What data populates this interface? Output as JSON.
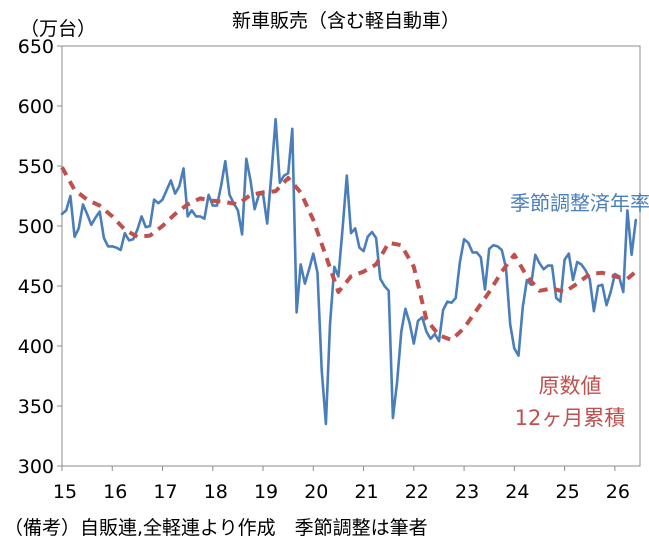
{
  "chart_data": {
    "type": "line",
    "title": "新車販売（含む軽自動車）",
    "unit_label": "（万台）",
    "note": "（備考）自販連,全軽連より作成　季節調整は筆者",
    "x_ticks": [
      "15",
      "16",
      "17",
      "18",
      "19",
      "20",
      "21",
      "22",
      "23",
      "24",
      "25",
      "26"
    ],
    "y_ticks": [
      "300",
      "350",
      "400",
      "450",
      "500",
      "550",
      "600",
      "650"
    ],
    "ylim": [
      300,
      650
    ],
    "xlim": [
      2015,
      2026.5
    ],
    "grid": false,
    "series": [
      {
        "name": "季節調整済年率換算",
        "color": "#4a7ebb",
        "style": "solid",
        "x": [
          2015.0,
          2015.083,
          2015.167,
          2015.25,
          2015.333,
          2015.417,
          2015.5,
          2015.583,
          2015.667,
          2015.75,
          2015.833,
          2015.917,
          2016.0,
          2016.083,
          2016.167,
          2016.25,
          2016.333,
          2016.417,
          2016.5,
          2016.583,
          2016.667,
          2016.75,
          2016.833,
          2016.917,
          2017.0,
          2017.083,
          2017.167,
          2017.25,
          2017.333,
          2017.417,
          2017.5,
          2017.583,
          2017.667,
          2017.75,
          2017.833,
          2017.917,
          2018.0,
          2018.083,
          2018.167,
          2018.25,
          2018.333,
          2018.417,
          2018.5,
          2018.583,
          2018.667,
          2018.75,
          2018.833,
          2018.917,
          2019.0,
          2019.083,
          2019.167,
          2019.25,
          2019.333,
          2019.417,
          2019.5,
          2019.583,
          2019.667,
          2019.75,
          2019.833,
          2019.917,
          2020.0,
          2020.083,
          2020.167,
          2020.25,
          2020.333,
          2020.417,
          2020.5,
          2020.583,
          2020.667,
          2020.75,
          2020.833,
          2020.917,
          2021.0,
          2021.083,
          2021.167,
          2021.25,
          2021.333,
          2021.417,
          2021.5,
          2021.583,
          2021.667,
          2021.75,
          2021.833,
          2021.917,
          2022.0,
          2022.083,
          2022.167,
          2022.25,
          2022.333,
          2022.417,
          2022.5,
          2022.583,
          2022.667,
          2022.75,
          2022.833,
          2022.917,
          2023.0,
          2023.083,
          2023.167,
          2023.25,
          2023.333,
          2023.417,
          2023.5,
          2023.583,
          2023.667,
          2023.75,
          2023.833,
          2023.917,
          2024.0,
          2024.083,
          2024.167,
          2024.25,
          2024.333,
          2024.417,
          2024.5,
          2024.583,
          2024.667,
          2024.75,
          2024.833,
          2024.917,
          2025.0,
          2025.083,
          2025.167,
          2025.25,
          2025.333,
          2025.417,
          2025.5,
          2025.583,
          2025.667,
          2025.75,
          2025.833,
          2025.917,
          2026.0,
          2026.083,
          2026.167,
          2026.25,
          2026.333,
          2026.417
        ],
        "values": [
          510,
          513,
          525,
          491,
          498,
          518,
          510,
          501,
          507,
          512,
          490,
          483,
          483,
          482,
          480,
          494,
          488,
          489,
          497,
          508,
          499,
          500,
          522,
          519,
          522,
          530,
          538,
          527,
          533,
          548,
          508,
          513,
          508,
          508,
          506,
          526,
          517,
          517,
          534,
          554,
          526,
          519,
          513,
          493,
          556,
          538,
          514,
          526,
          527,
          502,
          543,
          589,
          536,
          542,
          544,
          581,
          428,
          468,
          452,
          464,
          477,
          461,
          380,
          335,
          418,
          466,
          458,
          498,
          542,
          494,
          498,
          482,
          479,
          491,
          495,
          490,
          456,
          450,
          446,
          340,
          370,
          412,
          431,
          419,
          402,
          421,
          424,
          412,
          406,
          410,
          404,
          430,
          437,
          436,
          440,
          470,
          489,
          486,
          478,
          478,
          474,
          447,
          481,
          484,
          483,
          480,
          465,
          418,
          398,
          392,
          432,
          455,
          451,
          476,
          469,
          464,
          467,
          467,
          440,
          437,
          472,
          477,
          455,
          470,
          468,
          463,
          456,
          429,
          450,
          451,
          434,
          445,
          460,
          458,
          445,
          513,
          476,
          505
        ]
      },
      {
        "name": "原数値 12ヶ月累積",
        "label_lines": [
          "原数値",
          "12ヶ月累積"
        ],
        "color": "#c0504d",
        "style": "dashed",
        "x": [
          2015.0,
          2015.25,
          2015.5,
          2015.75,
          2016.0,
          2016.25,
          2016.5,
          2016.75,
          2017.0,
          2017.25,
          2017.5,
          2017.75,
          2018.0,
          2018.25,
          2018.5,
          2018.75,
          2019.0,
          2019.25,
          2019.5,
          2019.75,
          2020.0,
          2020.25,
          2020.5,
          2020.75,
          2021.0,
          2021.25,
          2021.5,
          2021.75,
          2022.0,
          2022.25,
          2022.5,
          2022.75,
          2023.0,
          2023.25,
          2023.5,
          2023.75,
          2024.0,
          2024.25,
          2024.5,
          2024.75,
          2025.0,
          2025.25,
          2025.5,
          2025.75,
          2026.0,
          2026.25,
          2026.417
        ],
        "values": [
          549,
          530,
          522,
          517,
          508,
          497,
          491,
          492,
          500,
          510,
          518,
          523,
          521,
          520,
          518,
          526,
          528,
          529,
          540,
          528,
          505,
          475,
          445,
          458,
          462,
          468,
          486,
          484,
          466,
          422,
          409,
          405,
          415,
          430,
          445,
          462,
          476,
          458,
          446,
          448,
          445,
          452,
          460,
          461,
          458,
          456,
          462
        ]
      }
    ]
  }
}
